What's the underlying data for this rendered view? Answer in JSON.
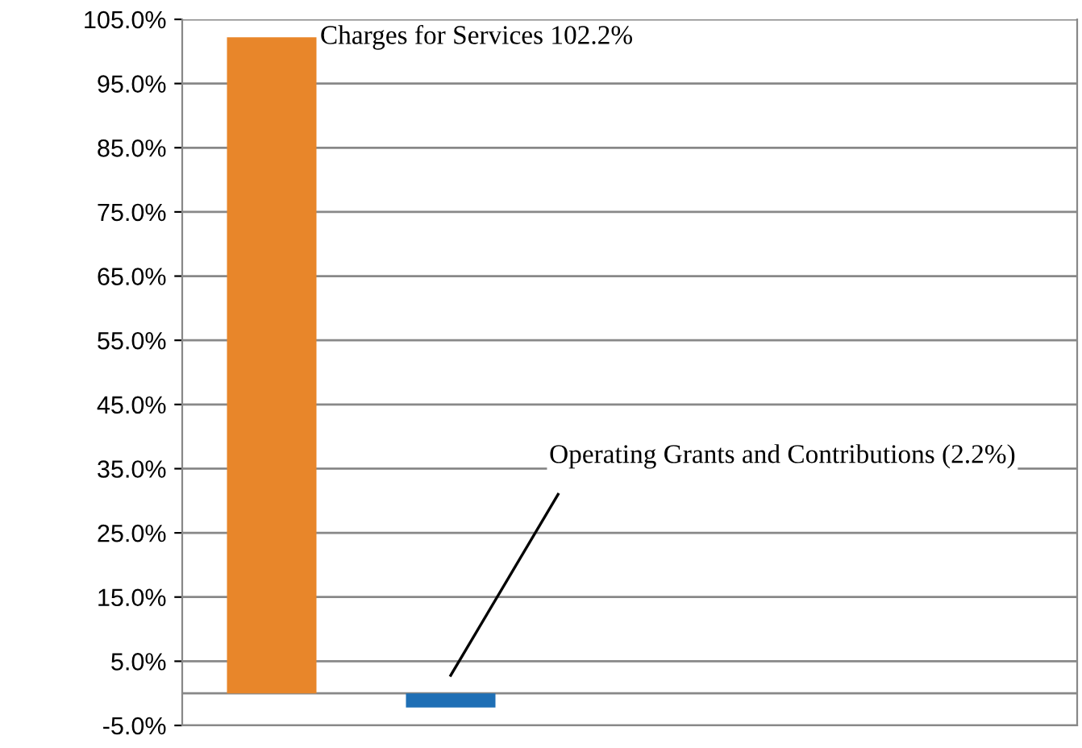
{
  "chart_data": {
    "type": "bar",
    "categories": [
      null,
      null,
      null,
      null,
      null
    ],
    "values": [
      102.2,
      -2.2,
      null,
      null,
      null
    ],
    "colors": [
      "#e8862a",
      "#1f6fb5",
      "#e8862a",
      "#e8862a",
      "#e8862a"
    ],
    "annotations": [
      "Charges for Services 102.2%",
      "Operating Grants and Contributions (2.2%)"
    ],
    "ylim": [
      -5,
      105
    ],
    "yticks": [
      {
        "value": -5,
        "label": "-5.0%"
      },
      {
        "value": 5,
        "label": "5.0%"
      },
      {
        "value": 15,
        "label": "15.0%"
      },
      {
        "value": 25,
        "label": "25.0%"
      },
      {
        "value": 35,
        "label": "35.0%"
      },
      {
        "value": 45,
        "label": "45.0%"
      },
      {
        "value": 55,
        "label": "55.0%"
      },
      {
        "value": 65,
        "label": "65.0%"
      },
      {
        "value": 75,
        "label": "75.0%"
      },
      {
        "value": 85,
        "label": "85.0%"
      },
      {
        "value": 95,
        "label": "95.0%"
      },
      {
        "value": 105,
        "label": "105.0%"
      }
    ],
    "grid": "y"
  }
}
